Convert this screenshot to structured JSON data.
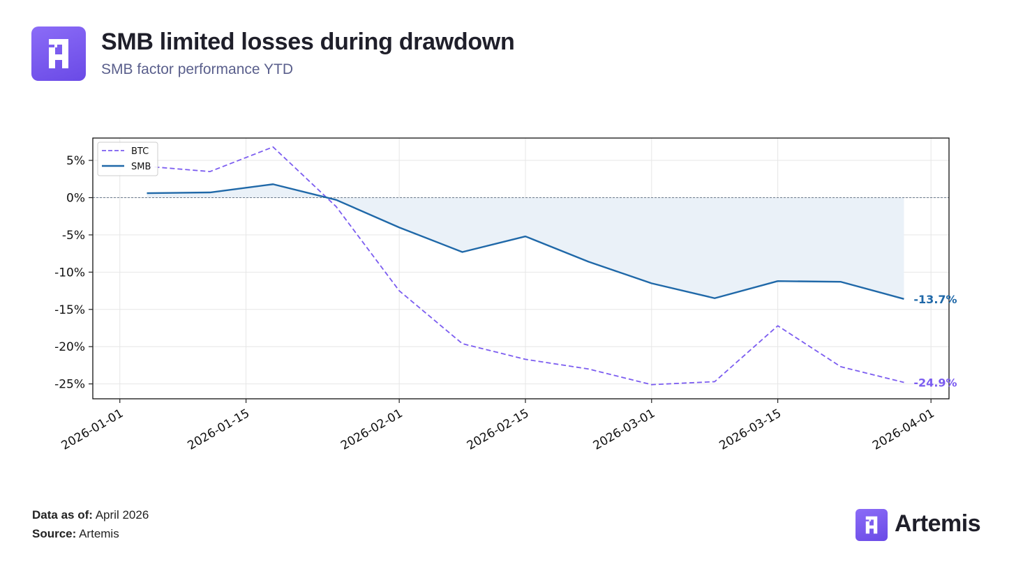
{
  "header": {
    "title": "SMB limited losses during drawdown",
    "subtitle": "SMB factor performance YTD"
  },
  "footer": {
    "data_as_of_label": "Data as of:",
    "data_as_of_value": "April 2026",
    "source_label": "Source:",
    "source_value": "Artemis"
  },
  "brand": {
    "name": "Artemis",
    "logo_icon": "artemis-logo-icon"
  },
  "colors": {
    "btc": "#7b5cf0",
    "smb": "#1f68a8",
    "fill": "#eaf1f8",
    "zero_line": "#6b7a8c"
  },
  "chart_data": {
    "type": "line",
    "x_axis": {
      "type": "date",
      "range": [
        "2025-12-29",
        "2026-04-03"
      ],
      "ticks": [
        "2026-01-01",
        "2026-01-15",
        "2026-02-01",
        "2026-02-15",
        "2026-03-01",
        "2026-03-15",
        "2026-04-01"
      ]
    },
    "y_axis": {
      "range": [
        -27,
        8
      ],
      "ticks": [
        5,
        0,
        -5,
        -10,
        -15,
        -20,
        -25
      ],
      "tick_labels": [
        "5%",
        "0%",
        "-5%",
        "-10%",
        "-15%",
        "-20%",
        "-25%"
      ]
    },
    "grid": true,
    "legend": {
      "position": "top-left",
      "entries": [
        "BTC",
        "SMB"
      ]
    },
    "series": [
      {
        "name": "BTC",
        "style": "dashed",
        "color": "#7b5cf0",
        "points": [
          [
            "2026-01-04",
            4.2
          ],
          [
            "2026-01-11",
            3.5
          ],
          [
            "2026-01-18",
            6.8
          ],
          [
            "2026-01-25",
            -1.2
          ],
          [
            "2026-02-01",
            -12.5
          ],
          [
            "2026-02-08",
            -19.6
          ],
          [
            "2026-02-15",
            -21.7
          ],
          [
            "2026-02-22",
            -23.0
          ],
          [
            "2026-03-01",
            -25.1
          ],
          [
            "2026-03-08",
            -24.7
          ],
          [
            "2026-03-15",
            -17.2
          ],
          [
            "2026-03-22",
            -22.7
          ],
          [
            "2026-03-29",
            -24.8
          ]
        ],
        "end_label": "-24.9%"
      },
      {
        "name": "SMB",
        "style": "solid",
        "color": "#1f68a8",
        "points": [
          [
            "2026-01-04",
            0.6
          ],
          [
            "2026-01-11",
            0.7
          ],
          [
            "2026-01-18",
            1.8
          ],
          [
            "2026-01-25",
            -0.3
          ],
          [
            "2026-02-01",
            -4.0
          ],
          [
            "2026-02-08",
            -7.3
          ],
          [
            "2026-02-15",
            -5.2
          ],
          [
            "2026-02-22",
            -8.6
          ],
          [
            "2026-03-01",
            -11.5
          ],
          [
            "2026-03-08",
            -13.5
          ],
          [
            "2026-03-15",
            -11.2
          ],
          [
            "2026-03-22",
            -11.3
          ],
          [
            "2026-03-29",
            -13.6
          ]
        ],
        "end_label": "-13.7%",
        "fill_to_zero": true
      }
    ]
  }
}
